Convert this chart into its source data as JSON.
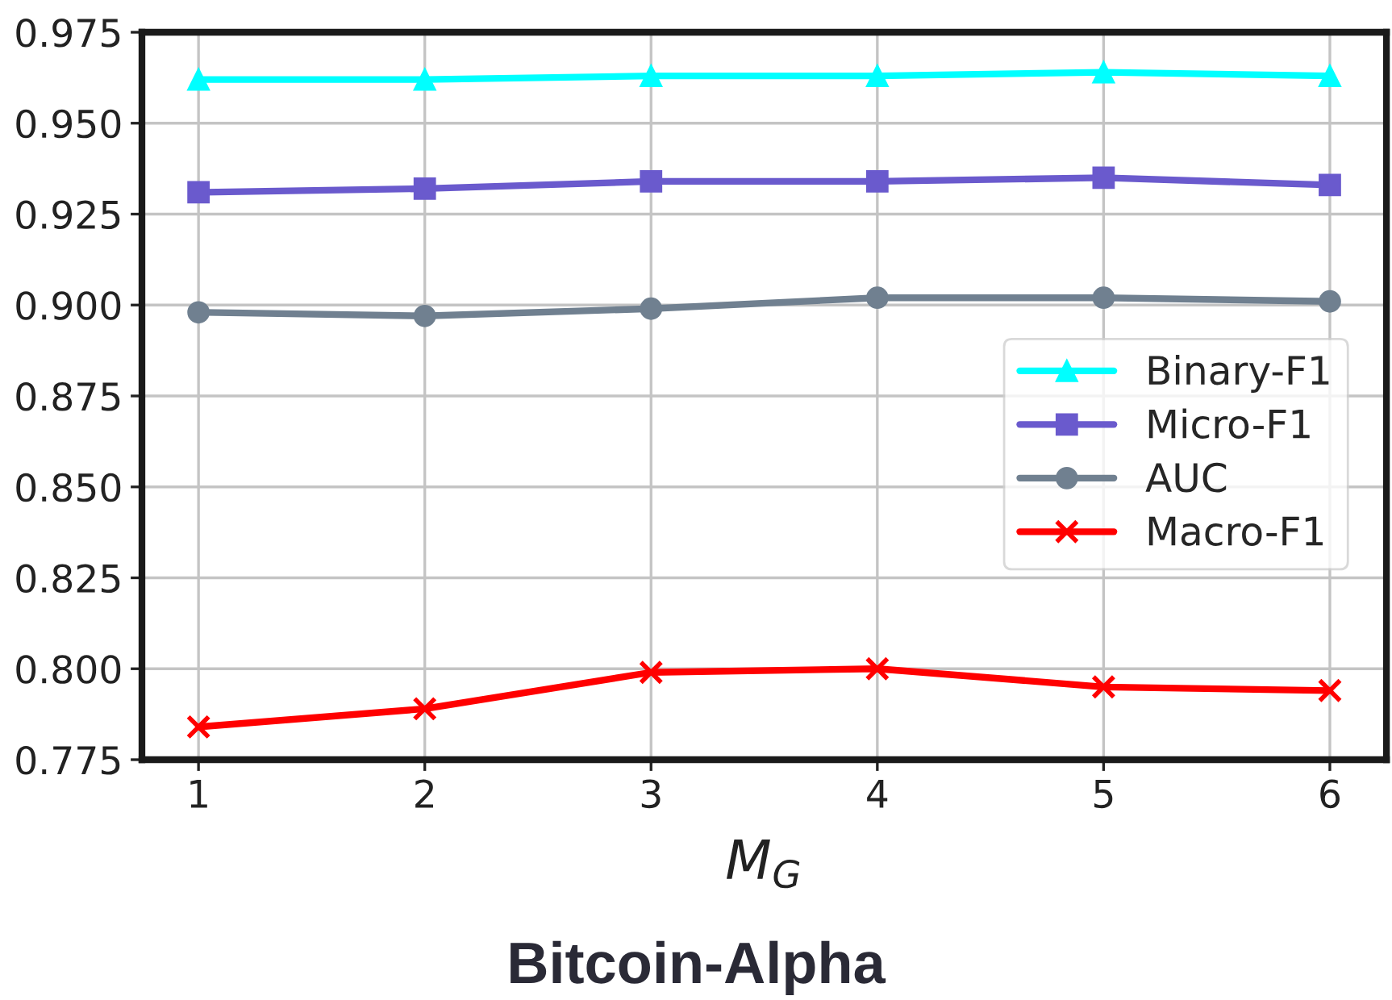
{
  "chart_data": {
    "type": "line",
    "title": "Bitcoin-Alpha",
    "xlabel": "M$_{G}$",
    "x": [
      1,
      2,
      3,
      4,
      5,
      6
    ],
    "series": [
      {
        "name": "Binary-F1",
        "color": "#00ffff",
        "marker": "triangle",
        "values": [
          0.962,
          0.962,
          0.963,
          0.963,
          0.964,
          0.963
        ]
      },
      {
        "name": "Micro-F1",
        "color": "#6a5acd",
        "marker": "square",
        "values": [
          0.931,
          0.932,
          0.934,
          0.934,
          0.935,
          0.933
        ]
      },
      {
        "name": "AUC",
        "color": "#708090",
        "marker": "circle",
        "values": [
          0.898,
          0.897,
          0.899,
          0.902,
          0.902,
          0.901
        ]
      },
      {
        "name": "Macro-F1",
        "color": "#ff0000",
        "marker": "cross",
        "values": [
          0.784,
          0.789,
          0.799,
          0.8,
          0.795,
          0.794
        ]
      }
    ],
    "xlim": [
      0.75,
      6.25
    ],
    "xticks": [
      1,
      2,
      3,
      4,
      5,
      6
    ],
    "ylim": [
      0.775,
      0.975
    ],
    "yticks": [
      {
        "value": 0.775,
        "label": "0.775"
      },
      {
        "value": 0.8,
        "label": "0.800"
      },
      {
        "value": 0.825,
        "label": "0.825"
      },
      {
        "value": 0.85,
        "label": "0.850"
      },
      {
        "value": 0.875,
        "label": "0.875"
      },
      {
        "value": 0.9,
        "label": "0.900"
      },
      {
        "value": 0.925,
        "label": "0.925"
      },
      {
        "value": 0.95,
        "label": "0.950"
      },
      {
        "value": 0.975,
        "label": "0.975"
      }
    ],
    "grid": true,
    "legend": "right",
    "line_style": "solid"
  }
}
